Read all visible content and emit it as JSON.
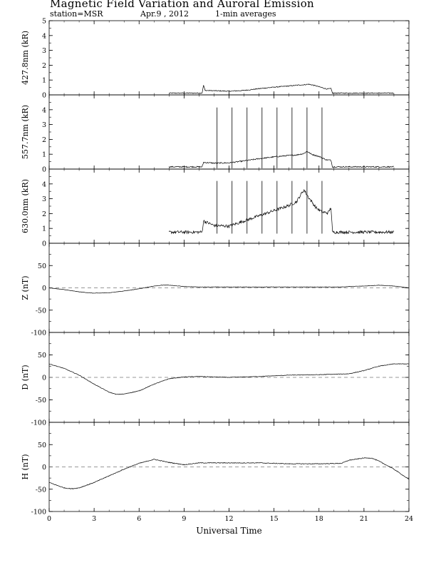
{
  "header": {
    "title": "Magnetic Field Variation and Auroral Emission",
    "station": "station=MSR",
    "date": "Apr.9  , 2012",
    "averaging": "1-min averages"
  },
  "chart_data": [
    {
      "type": "line",
      "ylabel": "427.8nm (kR)",
      "ylim": [
        0,
        5
      ],
      "yticks": [
        0,
        1,
        2,
        3,
        4,
        5
      ],
      "xlim": [
        0,
        24
      ],
      "series": [
        {
          "x": [
            8.0,
            10.2,
            10.3,
            10.4,
            11.0,
            12.0,
            13.0,
            14.0,
            15.0,
            16.0,
            16.5,
            17.0,
            17.3,
            17.6,
            18.0,
            18.5,
            18.8,
            18.9,
            20.0,
            21.0,
            22.0,
            23.0
          ],
          "y": [
            0.12,
            0.12,
            0.65,
            0.3,
            0.28,
            0.25,
            0.3,
            0.42,
            0.52,
            0.6,
            0.65,
            0.68,
            0.72,
            0.66,
            0.55,
            0.4,
            0.42,
            0.12,
            0.12,
            0.12,
            0.12,
            0.12
          ],
          "noise": 0.03
        }
      ]
    },
    {
      "type": "line",
      "ylabel": "557.7nm (kR)",
      "ylim": [
        0,
        5
      ],
      "yticks": [
        0,
        1,
        2,
        3,
        4
      ],
      "xlim": [
        0,
        24
      ],
      "series": [
        {
          "x": [
            8.0,
            10.2,
            10.3,
            11.0,
            12.0,
            13.0,
            14.0,
            15.0,
            16.0,
            16.5,
            17.0,
            17.2,
            17.5,
            18.0,
            18.5,
            18.8,
            18.9,
            20.0,
            21.0,
            22.0,
            23.0
          ],
          "y": [
            0.15,
            0.15,
            0.45,
            0.4,
            0.42,
            0.55,
            0.7,
            0.82,
            0.92,
            0.95,
            1.05,
            1.2,
            1.0,
            0.85,
            0.62,
            0.6,
            0.15,
            0.15,
            0.15,
            0.15,
            0.15
          ],
          "noise": 0.04
        }
      ],
      "spikes": {
        "x": [
          11.2,
          12.2,
          13.2,
          14.2,
          15.2,
          16.2,
          17.2,
          18.2
        ],
        "top": 4.15,
        "bottom": 0.05
      }
    },
    {
      "type": "line",
      "ylabel": "630.0nm (kR)",
      "ylim": [
        0,
        5
      ],
      "yticks": [
        0,
        1,
        2,
        3,
        4
      ],
      "xlim": [
        0,
        24
      ],
      "series": [
        {
          "x": [
            8.0,
            10.2,
            10.3,
            11.0,
            12.0,
            13.0,
            14.0,
            15.0,
            16.0,
            16.5,
            16.8,
            17.0,
            17.3,
            17.8,
            18.2,
            18.6,
            18.8,
            18.9,
            20.0,
            21.0,
            22.0,
            23.0
          ],
          "y": [
            0.75,
            0.75,
            1.5,
            1.2,
            1.15,
            1.5,
            1.85,
            2.2,
            2.55,
            2.8,
            3.3,
            3.6,
            3.1,
            2.4,
            2.1,
            2.05,
            2.4,
            0.75,
            0.75,
            0.75,
            0.75,
            0.75
          ],
          "noise": 0.1
        }
      ],
      "spikes": {
        "x": [
          11.2,
          12.2,
          13.2,
          14.2,
          15.2,
          16.2,
          17.2,
          18.2
        ],
        "top": 4.2,
        "bottom": 0.65
      }
    },
    {
      "type": "line",
      "ylabel": "Z (nT)",
      "ylim": [
        -100,
        100
      ],
      "yticks": [
        -100,
        -50,
        0,
        50
      ],
      "baseline": 0,
      "xlim": [
        0,
        24
      ],
      "series": [
        {
          "x": [
            0,
            1,
            2,
            3,
            4,
            5,
            6,
            7,
            7.5,
            8,
            9,
            10,
            12,
            14,
            16,
            18,
            19.5,
            20,
            21,
            22,
            23,
            24
          ],
          "y": [
            0,
            -4,
            -9,
            -12,
            -11,
            -7,
            -2,
            4,
            6,
            6,
            3,
            2,
            2,
            2,
            2,
            2,
            2,
            3,
            4,
            6,
            4,
            0
          ],
          "noise": 0.4
        }
      ]
    },
    {
      "type": "line",
      "ylabel": "D (nT)",
      "ylim": [
        -100,
        100
      ],
      "yticks": [
        -100,
        -50,
        0,
        50
      ],
      "baseline": 0,
      "xlim": [
        0,
        24
      ],
      "series": [
        {
          "x": [
            0,
            1,
            2,
            3,
            4,
            4.5,
            5,
            6,
            7,
            8,
            9,
            10,
            12,
            14,
            16,
            18,
            20,
            21,
            22,
            23,
            24
          ],
          "y": [
            30,
            20,
            5,
            -15,
            -33,
            -38,
            -37,
            -30,
            -15,
            -3,
            1,
            2,
            0,
            2,
            5,
            6,
            8,
            15,
            25,
            30,
            30
          ],
          "noise": 0.6
        }
      ]
    },
    {
      "type": "line",
      "ylabel": "H (nT)",
      "ylim": [
        -100,
        100
      ],
      "yticks": [
        -100,
        -50,
        0,
        50
      ],
      "baseline": 0,
      "xlim": [
        0,
        24
      ],
      "series": [
        {
          "x": [
            0,
            1,
            1.5,
            2,
            3,
            4,
            5,
            6,
            7,
            8,
            9,
            10,
            12,
            14,
            16,
            18,
            19.5,
            20,
            21,
            21.5,
            22,
            23,
            24
          ],
          "y": [
            -35,
            -47,
            -49,
            -47,
            -35,
            -20,
            -5,
            8,
            17,
            10,
            5,
            9,
            9,
            9,
            7,
            7,
            8,
            15,
            20,
            20,
            13,
            -5,
            -28
          ],
          "noise": 0.8
        }
      ]
    }
  ],
  "x_axis": {
    "label": "Universal Time",
    "ticks": [
      0,
      3,
      6,
      9,
      12,
      15,
      18,
      21,
      24
    ]
  }
}
